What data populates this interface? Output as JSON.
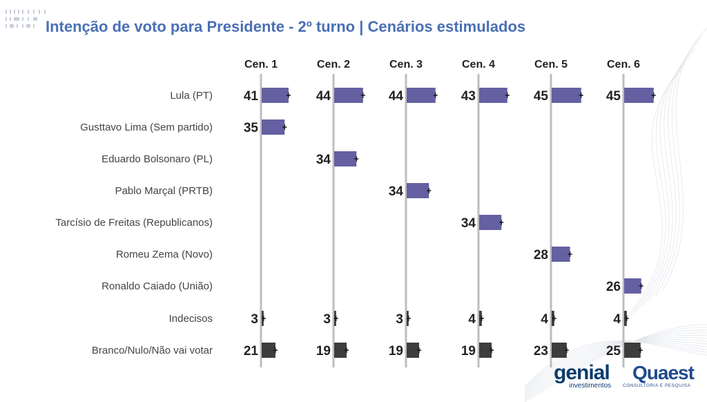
{
  "title": "Intenção de voto para Presidente - 2º turno | Cenários estimulados",
  "colors": {
    "candidate_bar": "#6460a1",
    "other_bar": "#3d3d3d",
    "title": "#4a6fb5",
    "gridline": "#bdbdbd"
  },
  "chart_data": {
    "type": "bar",
    "orientation": "horizontal-small-multiples",
    "title": "Intenção de voto para Presidente - 2º turno | Cenários estimulados",
    "scenarios": [
      "Cen. 1",
      "Cen. 2",
      "Cen. 3",
      "Cen. 4",
      "Cen. 5",
      "Cen. 6"
    ],
    "categories": [
      "Lula (PT)",
      "Gusttavo Lima (Sem partido)",
      "Eduardo Bolsonaro (PL)",
      "Pablo Marçal (PRTB)",
      "Tarcísio de Freitas (Republicanos)",
      "Romeu Zema (Novo)",
      "Ronaldo Caiado (União)",
      "Indecisos",
      "Branco/Nulo/Não vai votar"
    ],
    "category_kind": [
      "candidate",
      "candidate",
      "candidate",
      "candidate",
      "candidate",
      "candidate",
      "candidate",
      "other",
      "other"
    ],
    "values": [
      [
        41,
        44,
        44,
        43,
        45,
        45
      ],
      [
        35,
        null,
        null,
        null,
        null,
        null
      ],
      [
        null,
        34,
        null,
        null,
        null,
        null
      ],
      [
        null,
        null,
        34,
        null,
        null,
        null
      ],
      [
        null,
        null,
        null,
        34,
        null,
        null
      ],
      [
        null,
        null,
        null,
        null,
        28,
        null
      ],
      [
        null,
        null,
        null,
        null,
        null,
        26
      ],
      [
        3,
        3,
        3,
        4,
        4,
        4
      ],
      [
        21,
        19,
        19,
        19,
        23,
        25
      ]
    ],
    "error_bars": true
  },
  "logos": {
    "genial": "genial",
    "genial_sub": "investimentos",
    "quaest": "Quaest",
    "quaest_sub": "CONSULTORIA E PESQUISA"
  }
}
